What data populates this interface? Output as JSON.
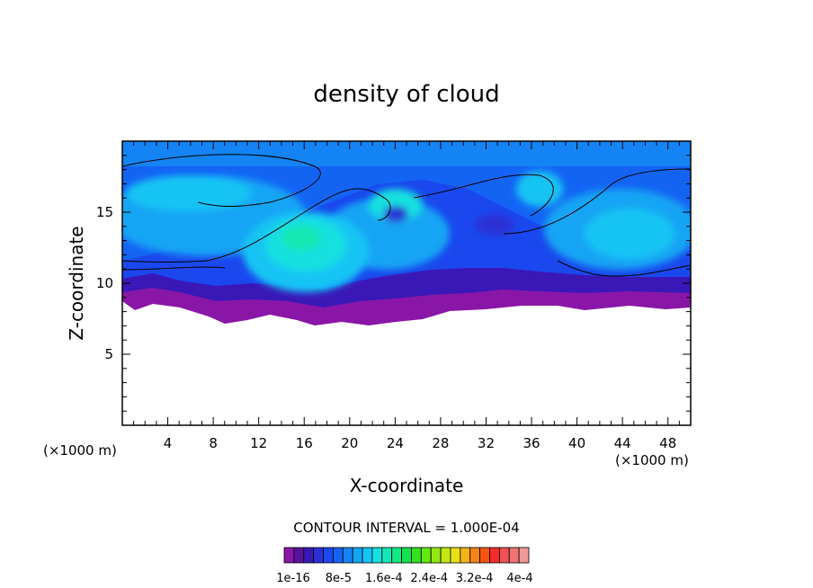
{
  "chart_data": {
    "type": "heatmap",
    "title": "density of cloud",
    "xlabel": "X-coordinate",
    "ylabel": "Z-coordinate",
    "x_unit": "(×1000 m)",
    "z_unit": "(×1000 m)",
    "xlim": [
      0,
      50
    ],
    "ylim": [
      0,
      20
    ],
    "x_ticks": [
      4,
      8,
      12,
      16,
      20,
      24,
      28,
      32,
      36,
      40,
      44,
      48
    ],
    "y_ticks": [
      5,
      10,
      15
    ],
    "contour_interval_text": "CONTOUR INTERVAL = 1.000E-04",
    "colorbar_labels": [
      "1e-16",
      "8e-5",
      "1.6e-4",
      "2.4e-4",
      "3.2e-4",
      "4e-4"
    ],
    "colorbar_colors": [
      "#8a16a8",
      "#5a0fa0",
      "#3a18b8",
      "#2a30d6",
      "#1a48ee",
      "#1464f4",
      "#1484f4",
      "#14a4f4",
      "#14c4f4",
      "#14e0e0",
      "#14e8b4",
      "#14e884",
      "#14e050",
      "#34e020",
      "#64e814",
      "#94e814",
      "#c4e814",
      "#e8e014",
      "#f4b414",
      "#f48414",
      "#f45414",
      "#f42c2c",
      "#f05050",
      "#f07474",
      "#f09898"
    ],
    "background_fill": "#ffffff",
    "notes_visible": "cloud field occupies roughly z 7–19.5 km across x 0–50 km"
  }
}
